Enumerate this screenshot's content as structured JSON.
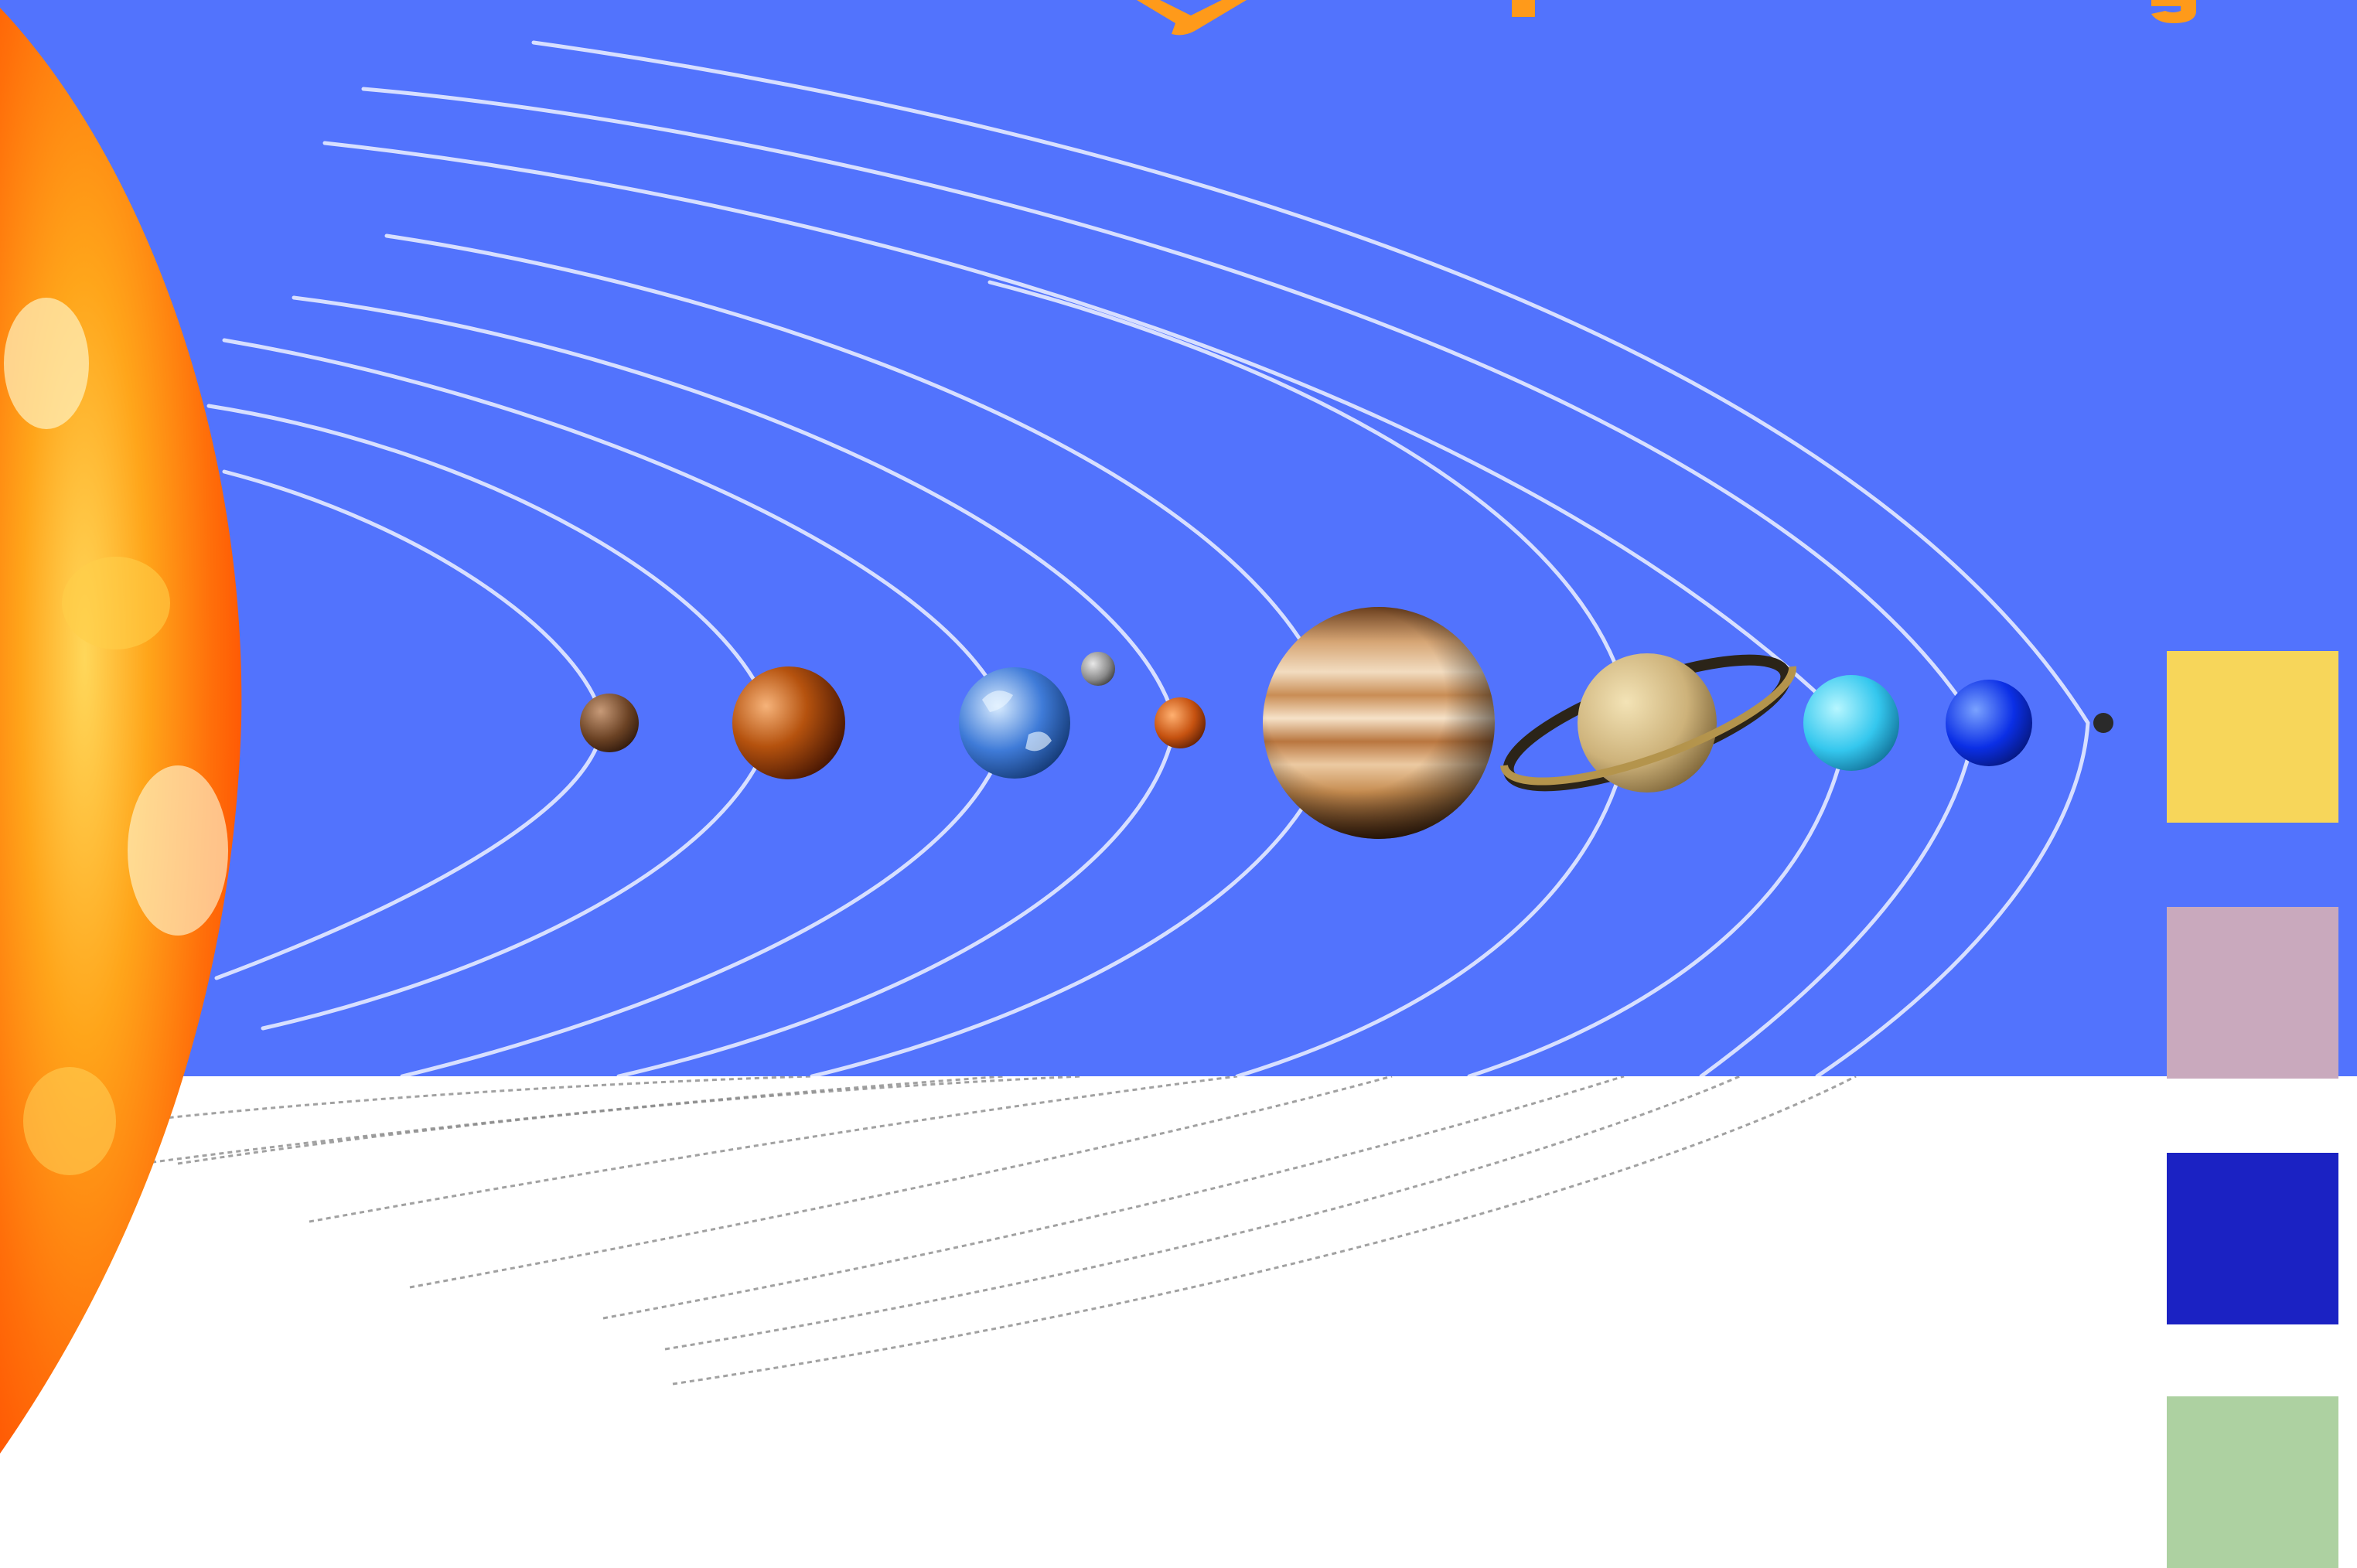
{
  "colors": {
    "sky": "#5273fd",
    "ground": "#ffffff",
    "sun_inner": "#ffb81a",
    "sun_mid": "#ff7a0a",
    "sun_outer": "#ff4a00",
    "orbit_on_sky": "#eef2ff",
    "orbit_on_white": "#8a8a8a"
  },
  "title_text_fragment": "y p g",
  "planets": [
    {
      "name": "mercury",
      "color": "#6b4224"
    },
    {
      "name": "venus",
      "color": "#9a3d0a"
    },
    {
      "name": "earth",
      "color": "#3f7bd8"
    },
    {
      "name": "moon",
      "color": "#9a9a9a"
    },
    {
      "name": "mars",
      "color": "#c65210"
    },
    {
      "name": "jupiter",
      "color": "#c58b4f"
    },
    {
      "name": "saturn",
      "color": "#cdb27a"
    },
    {
      "name": "uranus",
      "color": "#34c7ee"
    },
    {
      "name": "neptune",
      "color": "#0b2fe6"
    },
    {
      "name": "pluto",
      "color": "#2a2a2a"
    }
  ],
  "legend_swatches": [
    {
      "color": "#f7d65a"
    },
    {
      "color": "#c9a9bd"
    },
    {
      "color": "#1b22c3"
    },
    {
      "color": "#add1a1"
    }
  ]
}
